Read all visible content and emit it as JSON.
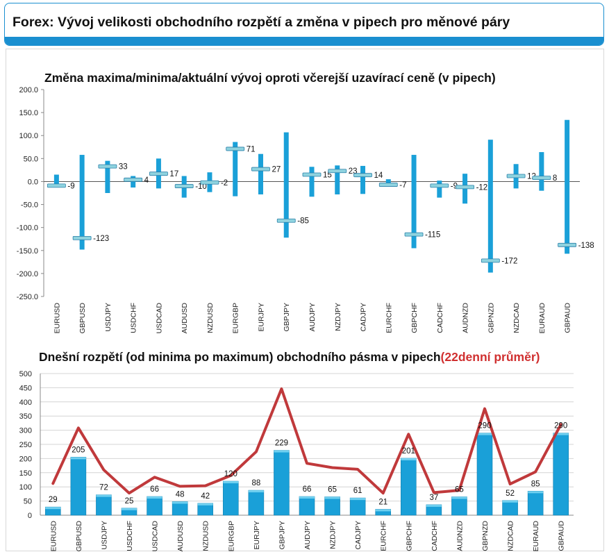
{
  "header": {
    "title": "Forex: Vývoj velikosti obchodního rozpětí a změna v pipech pro měnové páry"
  },
  "colors": {
    "accent": "#1a8fd0",
    "bar": "#1aa0d8",
    "marker": "#8fd3df",
    "line": "#c0393b"
  },
  "chart_data": [
    {
      "type": "bar",
      "title": "Změna maxima/minima/aktuální vývoj oproti včerejší uzavírací ceně (v pipech)",
      "categories": [
        "EURUSD",
        "GBPUSD",
        "USDJPY",
        "USDCHF",
        "USDCAD",
        "AUDUSD",
        "NZDUSD",
        "EURGBP",
        "EURJPY",
        "GBPJPY",
        "AUDJPY",
        "NZDJPY",
        "CADJPY",
        "EURCHF",
        "GBPCHF",
        "CADCHF",
        "AUDNZD",
        "GBPNZD",
        "NZDCAD",
        "EURAUD",
        "GBPAUD"
      ],
      "series": [
        {
          "name": "",
          "role": "high",
          "values": [
            15,
            58,
            45,
            12,
            50,
            12,
            20,
            86,
            60,
            107,
            32,
            35,
            34,
            5,
            58,
            2,
            17,
            91,
            38,
            64,
            134
          ]
        },
        {
          "name": "",
          "role": "low",
          "values": [
            -10,
            -148,
            -25,
            -13,
            -15,
            -35,
            -23,
            -32,
            -28,
            -122,
            -33,
            -28,
            -27,
            -10,
            -145,
            -35,
            -48,
            -198,
            -15,
            -20,
            -157
          ]
        },
        {
          "name": "",
          "role": "current",
          "values": [
            -9,
            -123,
            33,
            4,
            17,
            -10,
            -2,
            71,
            27,
            -85,
            15,
            23,
            14,
            -7,
            -115,
            -9,
            -12,
            -172,
            12,
            8,
            -138
          ]
        }
      ],
      "ylim": [
        -250,
        200
      ],
      "yticks": [
        "200.0",
        "150.0",
        "100.0",
        "50.0",
        "0.0",
        "-50.0",
        "-100.0",
        "-150.0",
        "-200.0",
        "-250.0"
      ],
      "xlabel": "",
      "ylabel": ""
    },
    {
      "type": "bar",
      "title": "Dnešní rozpětí (od minima po maximum) obchodního pásma v pipech",
      "title_note": "(22denní průměr)",
      "categories": [
        "EURUSD",
        "GBPUSD",
        "USDJPY",
        "USDCHF",
        "USDCAD",
        "AUDUSD",
        "NZDUSD",
        "EURGBP",
        "EURJPY",
        "GBPJPY",
        "AUDJPY",
        "NZDJPY",
        "CADJPY",
        "EURCHF",
        "GBPCHF",
        "CADCHF",
        "AUDNZD",
        "GBPNZD",
        "NZDCAD",
        "EURAUD",
        "GBPAUD"
      ],
      "series": [
        {
          "name": "",
          "kind": "bar",
          "values": [
            29,
            205,
            72,
            25,
            66,
            48,
            42,
            120,
            88,
            229,
            66,
            65,
            61,
            21,
            201,
            37,
            65,
            290,
            52,
            85,
            290
          ]
        },
        {
          "name": "(22denní průměr)",
          "kind": "line",
          "values": [
            112,
            308,
            160,
            78,
            134,
            102,
            104,
            140,
            224,
            446,
            183,
            168,
            162,
            78,
            286,
            80,
            88,
            376,
            110,
            153,
            320
          ]
        }
      ],
      "ylim": [
        0,
        500
      ],
      "yticks": [
        "0",
        "50",
        "100",
        "150",
        "200",
        "250",
        "300",
        "350",
        "400",
        "450",
        "500"
      ],
      "xlabel": "",
      "ylabel": ""
    }
  ]
}
